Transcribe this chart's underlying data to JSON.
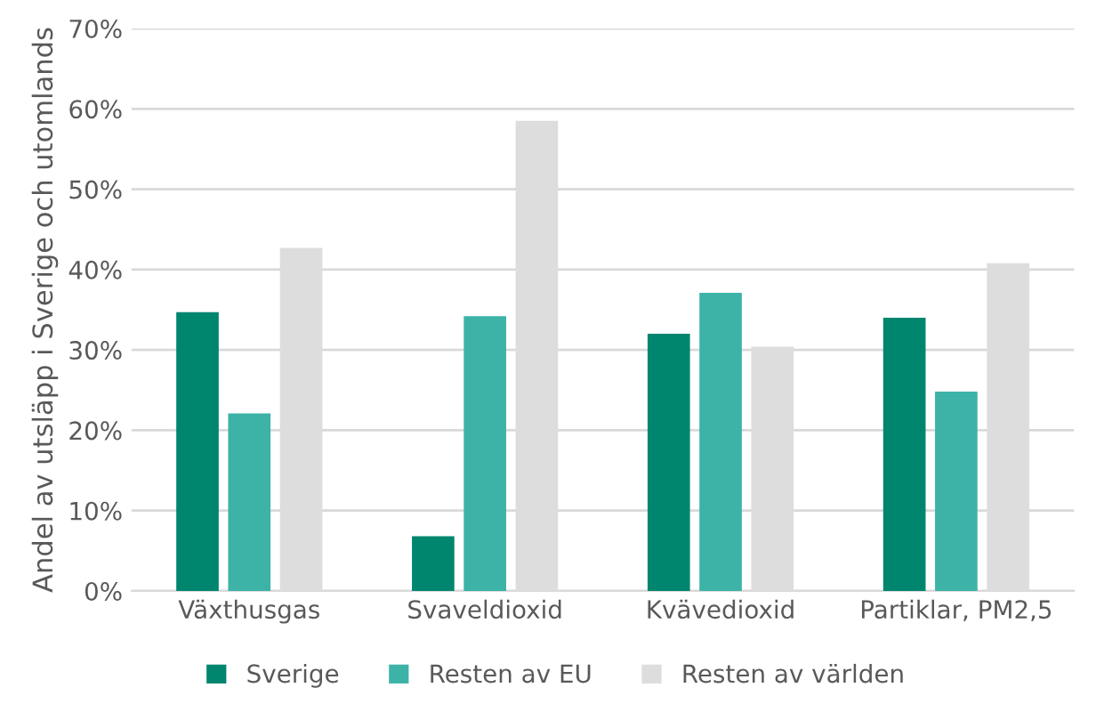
{
  "chart_data": {
    "type": "bar",
    "ylabel": "Andel av utsläpp i Sverige och utomlands",
    "categories": [
      "Växthusgas",
      "Svaveldioxid",
      "Kvävedioxid",
      "Partiklar, PM2,5"
    ],
    "series": [
      {
        "name": "Sverige",
        "color": "#00856f",
        "values": [
          34.7,
          6.8,
          32.0,
          34.0
        ]
      },
      {
        "name": "Resten av EU",
        "color": "#3db3a8",
        "values": [
          22.1,
          34.2,
          37.1,
          24.8
        ]
      },
      {
        "name": "Resten av världen",
        "color": "#dddddd",
        "values": [
          42.7,
          58.5,
          30.4,
          40.8
        ]
      }
    ],
    "ylim": [
      0,
      70
    ],
    "yticks": [
      {
        "value": 0,
        "label": "0%"
      },
      {
        "value": 10,
        "label": "10%"
      },
      {
        "value": 20,
        "label": "20%"
      },
      {
        "value": 30,
        "label": "30%"
      },
      {
        "value": 40,
        "label": "40%"
      },
      {
        "value": 50,
        "label": "50%"
      },
      {
        "value": 60,
        "label": "60%"
      },
      {
        "value": 70,
        "label": "70%"
      }
    ],
    "grid": "y",
    "legend": "bottom"
  }
}
